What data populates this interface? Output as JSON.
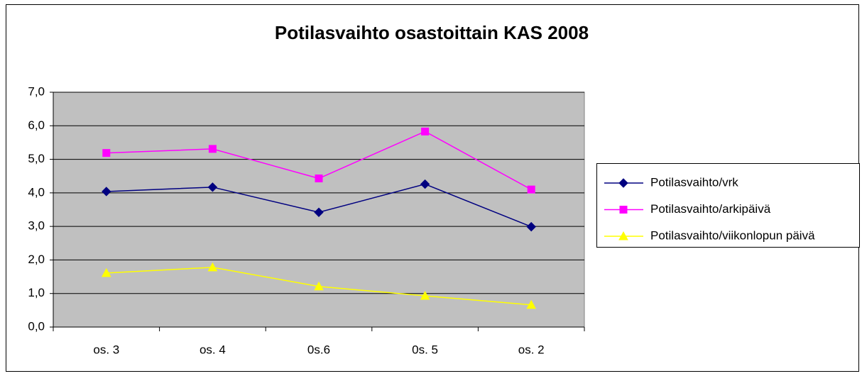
{
  "chart_data": {
    "type": "line",
    "title": "Potilasvaihto osastoittain KAS 2008",
    "categories": [
      "os. 3",
      "os. 4",
      "0s.6",
      "0s. 5",
      "os. 2"
    ],
    "series": [
      {
        "name": "Potilasvaihto/vrk",
        "color": "#000080",
        "marker": "diamond",
        "values": [
          4.04,
          4.17,
          3.42,
          4.26,
          2.99
        ]
      },
      {
        "name": "Potilasvaihto/arkipäivä",
        "color": "#ff00ff",
        "marker": "square",
        "values": [
          5.19,
          5.31,
          4.43,
          5.83,
          4.1
        ]
      },
      {
        "name": "Potilasvaihto/viikonlopun päivä",
        "color": "#ffff00",
        "marker": "triangle",
        "values": [
          1.61,
          1.78,
          1.21,
          0.93,
          0.66
        ]
      }
    ],
    "ylim": [
      0,
      7
    ],
    "yticks": [
      {
        "value": 0,
        "label": "0,0"
      },
      {
        "value": 1,
        "label": "1,0"
      },
      {
        "value": 2,
        "label": "2,0"
      },
      {
        "value": 3,
        "label": "3,0"
      },
      {
        "value": 4,
        "label": "4,0"
      },
      {
        "value": 5,
        "label": "5,0"
      },
      {
        "value": 6,
        "label": "6,0"
      },
      {
        "value": 7,
        "label": "7,0"
      }
    ],
    "grid": true,
    "plot_background": "#c0c0c0",
    "legend": "right"
  }
}
